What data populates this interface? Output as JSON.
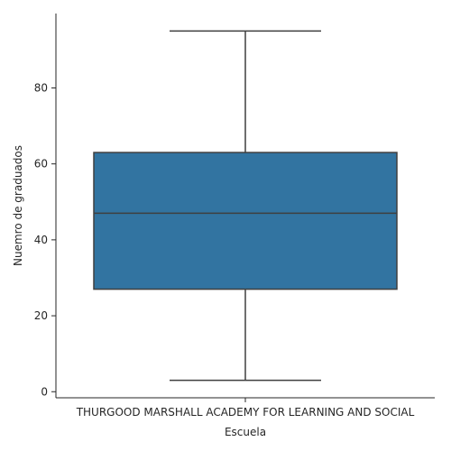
{
  "chart_data": {
    "type": "box",
    "categories": [
      "THURGOOD MARSHALL ACADEMY FOR LEARNING AND SOCIAL"
    ],
    "boxes": [
      {
        "category": "THURGOOD MARSHALL ACADEMY FOR LEARNING AND SOCIAL",
        "min": 3,
        "q1": 27,
        "median": 47,
        "q3": 63,
        "max": 95
      }
    ],
    "xlabel": "Escuela",
    "ylabel": "Nuemro de graduados",
    "yticks": [
      0,
      20,
      40,
      60,
      80
    ],
    "ylim": [
      -1.6,
      99.6
    ],
    "grid": false,
    "colors": {
      "box_fill": "#3274a1",
      "line": "#3f3f3f",
      "axis": "#262626"
    }
  }
}
